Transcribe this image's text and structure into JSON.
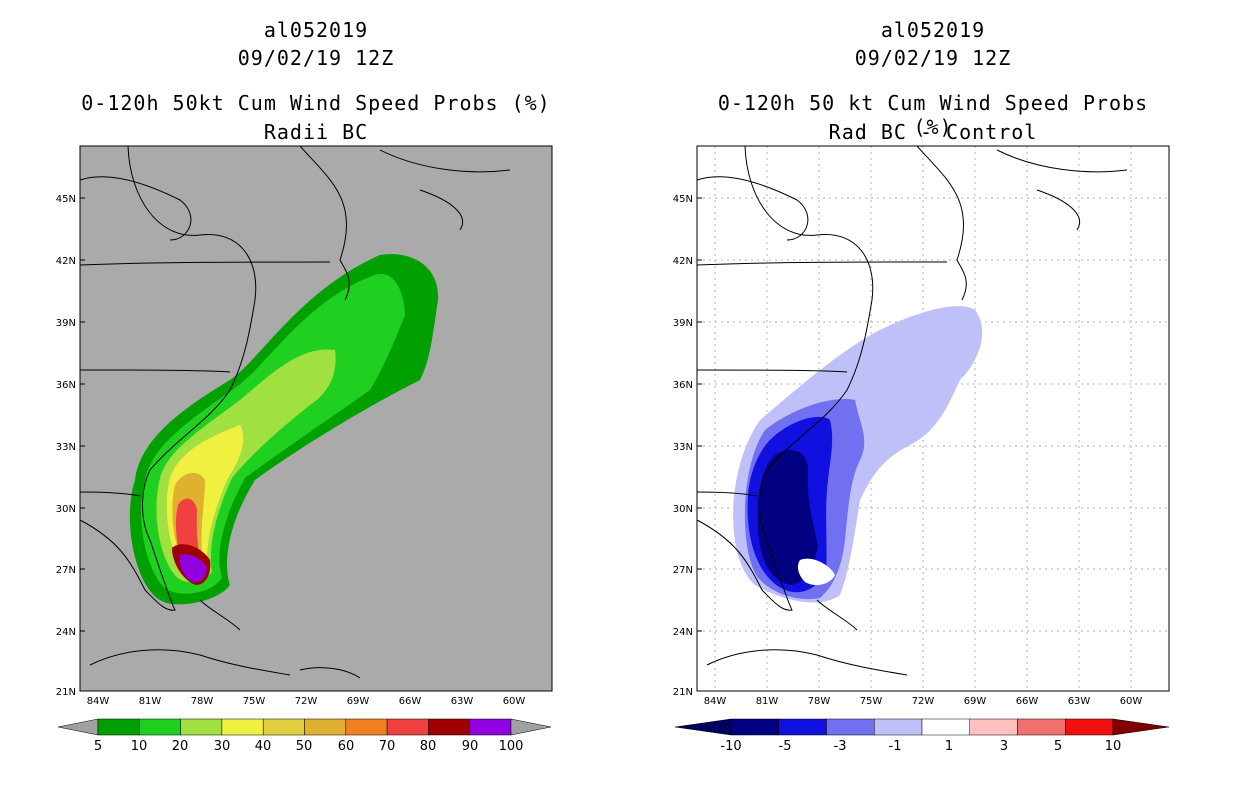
{
  "left_panel": {
    "storm_id": "al052019",
    "datetime": "09/02/19 12Z",
    "title": "0-120h 50kt Cum Wind Speed Probs (%)",
    "subtitle": "Radii BC",
    "colorbar_labels": [
      "5",
      "10",
      "20",
      "30",
      "40",
      "50",
      "60",
      "70",
      "80",
      "90",
      "100"
    ],
    "colorbar_colors": [
      "#00a000",
      "#20d020",
      "#a0e040",
      "#f0f040",
      "#e0d040",
      "#e0b030",
      "#f08020",
      "#f04040",
      "#a00000",
      "#9000e0"
    ]
  },
  "right_panel": {
    "storm_id": "al052019",
    "datetime": "09/02/19 12Z",
    "title": "0-120h 50 kt Cum Wind Speed Probs (%)",
    "subtitle": "Rad BC - Control",
    "colorbar_labels": [
      "-10",
      "-5",
      "-3",
      "-1",
      "1",
      "3",
      "5",
      "10"
    ],
    "colorbar_colors": [
      "#000080",
      "#1010e0",
      "#7070f0",
      "#c0c0f8",
      "#ffffff",
      "#ffc0c0",
      "#f07070",
      "#f01010"
    ]
  },
  "axes": {
    "lat_labels": [
      "45N",
      "42N",
      "39N",
      "36N",
      "33N",
      "30N",
      "27N",
      "24N",
      "21N"
    ],
    "lon_labels": [
      "84W",
      "81W",
      "78W",
      "75W",
      "72W",
      "69W",
      "66W",
      "63W",
      "60W"
    ]
  },
  "chart_data": {
    "type": "heatmap",
    "region": {
      "lat_range": [
        21,
        47
      ],
      "lon_range": [
        -85,
        -58
      ]
    },
    "colors": {
      "land_sea_left": "#aaaaaa",
      "land_sea_right": "#ffffff"
    }
  }
}
